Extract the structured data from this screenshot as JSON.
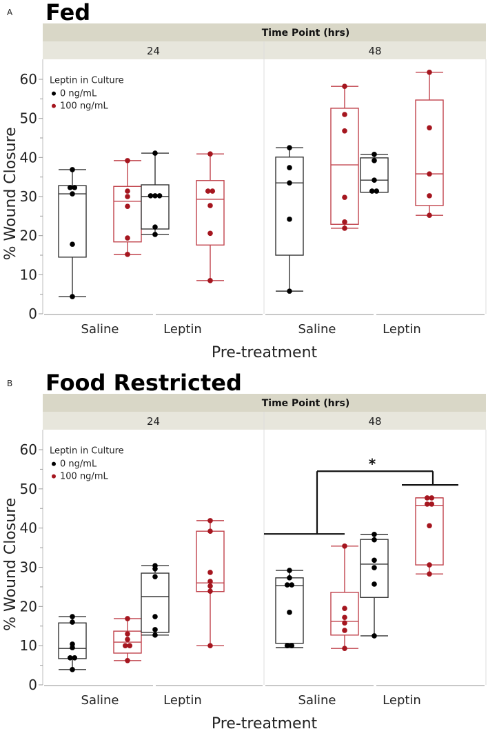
{
  "chart_data": [
    {
      "type": "box",
      "panel_letter": "A",
      "title": "Fed",
      "facet_title": "Time Point (hrs)",
      "facets": [
        "24",
        "48"
      ],
      "categories": [
        "Saline",
        "Leptin"
      ],
      "xlabel": "Pre-treatment",
      "ylabel": "% Wound Closure",
      "ylim": [
        0,
        65
      ],
      "yticks": [
        0,
        10,
        20,
        30,
        40,
        50,
        60
      ],
      "legend": {
        "title": "Leptin in Culture",
        "placement": "top-left",
        "entries": [
          "0 ng/mL",
          "100 ng/mL"
        ]
      },
      "series_colors": {
        "0 ng/mL": "#000000",
        "100 ng/mL": "#a5161f"
      },
      "groups": [
        {
          "facet": "24",
          "category": "Saline",
          "series": "0 ng/mL",
          "min": 4.4,
          "q1": 14.5,
          "median": 30.7,
          "q3": 32.8,
          "max": 36.9,
          "points": [
            36.9,
            32.3,
            32.3,
            30.7,
            17.8,
            4.4
          ]
        },
        {
          "facet": "24",
          "category": "Saline",
          "series": "100 ng/mL",
          "min": 15.2,
          "q1": 18.4,
          "median": 28.8,
          "q3": 32.6,
          "max": 39.2,
          "points": [
            39.2,
            31.4,
            30.0,
            27.5,
            19.4,
            15.2
          ]
        },
        {
          "facet": "24",
          "category": "Leptin",
          "series": "0 ng/mL",
          "min": 20.3,
          "q1": 21.7,
          "median": 30.0,
          "q3": 33.0,
          "max": 41.1,
          "points": [
            41.1,
            30.2,
            30.2,
            30.2,
            22.2,
            20.3
          ]
        },
        {
          "facet": "24",
          "category": "Leptin",
          "series": "100 ng/mL",
          "min": 8.5,
          "q1": 17.6,
          "median": 29.3,
          "q3": 34.1,
          "max": 40.9,
          "points": [
            40.9,
            31.4,
            31.4,
            27.7,
            20.6,
            8.5
          ]
        },
        {
          "facet": "48",
          "category": "Saline",
          "series": "0 ng/mL",
          "min": 5.8,
          "q1": 15.0,
          "median": 33.5,
          "q3": 40.1,
          "max": 42.5,
          "points": [
            42.5,
            37.4,
            33.5,
            24.2,
            5.8
          ]
        },
        {
          "facet": "48",
          "category": "Saline",
          "series": "100 ng/mL",
          "min": 21.9,
          "q1": 22.9,
          "median": 38.1,
          "q3": 52.6,
          "max": 58.2,
          "points": [
            58.2,
            51.0,
            46.8,
            29.8,
            23.5,
            21.9
          ]
        },
        {
          "facet": "48",
          "category": "Leptin",
          "series": "0 ng/mL",
          "min": 31.1,
          "q1": 31.1,
          "median": 34.2,
          "q3": 39.9,
          "max": 40.8,
          "points": [
            40.8,
            39.2,
            34.2,
            31.4,
            31.4
          ]
        },
        {
          "facet": "48",
          "category": "Leptin",
          "series": "100 ng/mL",
          "min": 25.2,
          "q1": 27.7,
          "median": 35.8,
          "q3": 54.7,
          "max": 61.8,
          "points": [
            61.8,
            47.6,
            35.8,
            30.2,
            25.2
          ]
        }
      ]
    },
    {
      "type": "box",
      "panel_letter": "B",
      "title": "Food Restricted",
      "facet_title": "Time Point (hrs)",
      "facets": [
        "24",
        "48"
      ],
      "categories": [
        "Saline",
        "Leptin"
      ],
      "xlabel": "Pre-treatment",
      "ylabel": "% Wound Closure",
      "ylim": [
        0,
        65
      ],
      "yticks": [
        0,
        10,
        20,
        30,
        40,
        50,
        60
      ],
      "legend": {
        "title": "Leptin in Culture",
        "placement": "top-left",
        "entries": [
          "0 ng/mL",
          "100 ng/mL"
        ]
      },
      "series_colors": {
        "0 ng/mL": "#000000",
        "100 ng/mL": "#a5161f"
      },
      "annotation": {
        "text": "*",
        "facet": "48",
        "left_group": "Saline",
        "right_group": "Leptin",
        "left_level": 38.5,
        "right_level": 51.0,
        "top_level": 54.5
      },
      "groups": [
        {
          "facet": "24",
          "category": "Saline",
          "series": "0 ng/mL",
          "min": 3.9,
          "q1": 6.7,
          "median": 9.3,
          "q3": 15.8,
          "max": 17.4,
          "points": [
            17.4,
            16.0,
            10.4,
            9.5,
            6.9,
            6.9,
            3.9
          ]
        },
        {
          "facet": "24",
          "category": "Saline",
          "series": "100 ng/mL",
          "min": 6.2,
          "q1": 8.1,
          "median": 10.9,
          "q3": 13.7,
          "max": 16.9,
          "points": [
            16.9,
            13.0,
            11.6,
            10.0,
            10.0,
            6.2
          ]
        },
        {
          "facet": "24",
          "category": "Leptin",
          "series": "0 ng/mL",
          "min": 12.7,
          "q1": 13.4,
          "median": 22.5,
          "q3": 28.5,
          "max": 30.4,
          "points": [
            30.4,
            29.6,
            27.6,
            17.4,
            14.1,
            12.7
          ]
        },
        {
          "facet": "24",
          "category": "Leptin",
          "series": "100 ng/mL",
          "min": 10.0,
          "q1": 23.8,
          "median": 26.0,
          "q3": 39.2,
          "max": 41.9,
          "points": [
            41.9,
            39.2,
            28.7,
            26.4,
            25.2,
            23.9,
            10.0
          ]
        },
        {
          "facet": "48",
          "category": "Saline",
          "series": "0 ng/mL",
          "min": 9.5,
          "q1": 10.6,
          "median": 25.3,
          "q3": 27.3,
          "max": 29.2,
          "points": [
            29.2,
            27.3,
            25.5,
            25.5,
            18.5,
            10.0,
            10.0
          ]
        },
        {
          "facet": "48",
          "category": "Saline",
          "series": "100 ng/mL",
          "min": 9.3,
          "q1": 12.7,
          "median": 16.2,
          "q3": 23.6,
          "max": 35.4,
          "points": [
            35.4,
            19.5,
            17.2,
            15.8,
            13.9,
            9.3
          ]
        },
        {
          "facet": "48",
          "category": "Leptin",
          "series": "0 ng/mL",
          "min": 12.5,
          "q1": 22.3,
          "median": 30.8,
          "q3": 37.1,
          "max": 38.4,
          "points": [
            38.4,
            37.0,
            31.8,
            29.9,
            25.7,
            12.5
          ]
        },
        {
          "facet": "48",
          "category": "Leptin",
          "series": "100 ng/mL",
          "min": 28.3,
          "q1": 30.6,
          "median": 45.8,
          "q3": 47.7,
          "max": 47.7,
          "points": [
            47.7,
            47.7,
            46.1,
            46.1,
            40.6,
            30.6,
            28.3
          ]
        }
      ]
    }
  ],
  "colors": {
    "strip_top": "#d9d7c7",
    "strip_bottom": "#e7e6dc",
    "frame": "#c8c8c8",
    "series_0": "#000000",
    "series_100": "#a5161f"
  }
}
